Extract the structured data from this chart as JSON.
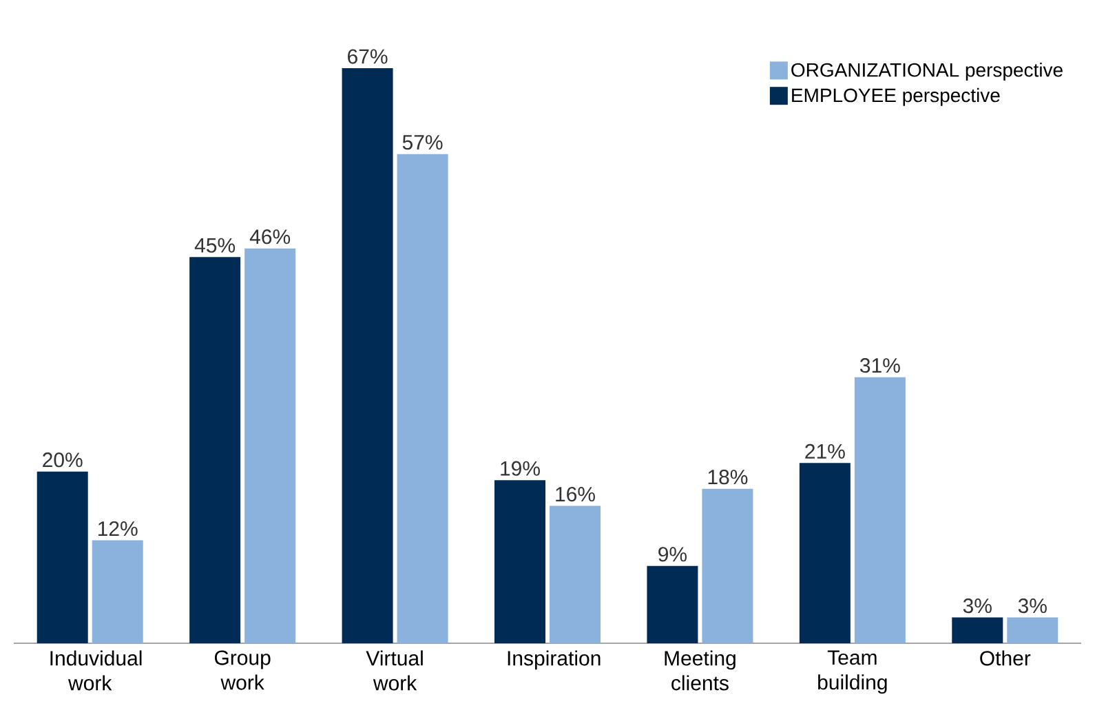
{
  "chart_data": {
    "type": "bar",
    "categories": [
      "Induvidual work",
      "Group work",
      "Virtual work",
      "Inspiration",
      "Meeting clients",
      "Team building",
      "Other"
    ],
    "series": [
      {
        "name": "EMPLOYEE perspective",
        "color": "#002b55",
        "values": [
          20,
          45,
          67,
          19,
          9,
          21,
          3
        ],
        "value_labels": [
          "20%",
          "45%",
          "67%",
          "19%",
          "9%",
          "21%",
          "3%"
        ]
      },
      {
        "name": "ORGANIZATIONAL perspective",
        "color": "#8ab2dc",
        "values": [
          12,
          46,
          57,
          16,
          18,
          31,
          3
        ],
        "value_labels": [
          "12%",
          "46%",
          "57%",
          "16%",
          "18%",
          "31%",
          "3%"
        ]
      }
    ],
    "legend": "top right"
  }
}
